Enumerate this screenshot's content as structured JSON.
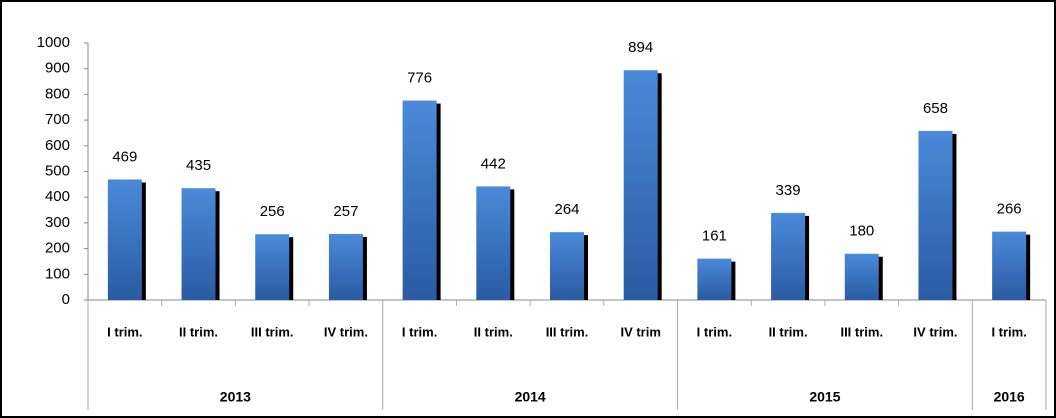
{
  "chart_data": {
    "type": "bar",
    "color": "#3f7bcc",
    "shadow_color": "#000000",
    "ylim": [
      0,
      1000
    ],
    "yticks": [
      0,
      100,
      200,
      300,
      400,
      500,
      600,
      700,
      800,
      900,
      1000
    ],
    "groups": [
      {
        "name": "2013",
        "categories": [
          "I trim.",
          "II trim.",
          "III trim.",
          "IV trim."
        ],
        "values": [
          469,
          435,
          256,
          257
        ]
      },
      {
        "name": "2014",
        "categories": [
          "I trim.",
          "II trim.",
          "III trim.",
          "IV trim"
        ],
        "values": [
          776,
          442,
          264,
          894
        ]
      },
      {
        "name": "2015",
        "categories": [
          "I trim.",
          "II trim.",
          "III trim.",
          "IV trim."
        ],
        "values": [
          161,
          339,
          180,
          658
        ]
      },
      {
        "name": "2016",
        "categories": [
          "I trim."
        ],
        "values": [
          266
        ]
      }
    ]
  }
}
